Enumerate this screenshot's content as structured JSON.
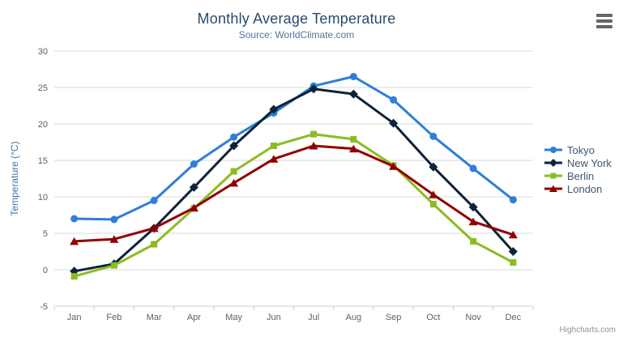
{
  "chart_data": {
    "type": "line",
    "title": "Monthly Average Temperature",
    "subtitle": "Source: WorldClimate.com",
    "categories": [
      "Jan",
      "Feb",
      "Mar",
      "Apr",
      "May",
      "Jun",
      "Jul",
      "Aug",
      "Sep",
      "Oct",
      "Nov",
      "Dec"
    ],
    "xlabel": "",
    "ylabel": "Temperature (°C)",
    "ylim": [
      -5,
      30
    ],
    "ytick_step": 5,
    "grid": true,
    "legend_position": "right",
    "series": [
      {
        "name": "Tokyo",
        "color": "#2f7ed8",
        "marker": "circle",
        "values": [
          7.0,
          6.9,
          9.5,
          14.5,
          18.2,
          21.5,
          25.2,
          26.5,
          23.3,
          18.3,
          13.9,
          9.6
        ]
      },
      {
        "name": "New York",
        "color": "#0d233a",
        "marker": "diamond",
        "values": [
          -0.2,
          0.8,
          5.7,
          11.3,
          17.0,
          22.0,
          24.8,
          24.1,
          20.1,
          14.1,
          8.6,
          2.5
        ]
      },
      {
        "name": "Berlin",
        "color": "#8bbc21",
        "marker": "square",
        "values": [
          -0.9,
          0.6,
          3.5,
          8.4,
          13.5,
          17.0,
          18.6,
          17.9,
          14.3,
          9.0,
          3.9,
          1.0
        ]
      },
      {
        "name": "London",
        "color": "#910000",
        "marker": "triangle",
        "values": [
          3.9,
          4.2,
          5.7,
          8.5,
          11.9,
          15.2,
          17.0,
          16.6,
          14.2,
          10.3,
          6.6,
          4.8
        ]
      }
    ],
    "axis_colors": {
      "line": "#c0d0e0",
      "grid": "#d8d8d8",
      "tick_label": "#606060",
      "axis_title": "#4572a7"
    }
  },
  "export_menu": {
    "icon": "hamburger"
  },
  "credits": {
    "label": "Highcharts.com"
  }
}
